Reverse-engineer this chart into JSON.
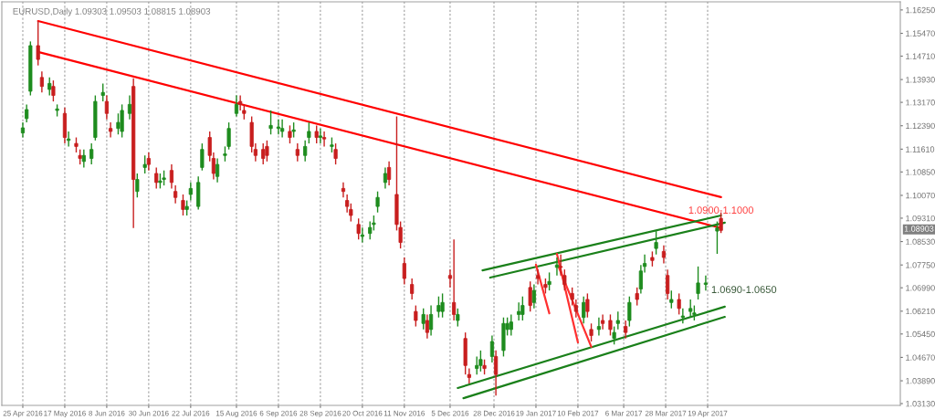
{
  "chart_data": {
    "type": "candlestick",
    "title": "EURUSD,Daily 1.09303 1.09503 1.08815 1.08903",
    "x": [
      "2016-04-25",
      "2016-04-27",
      "2016-04-29",
      "2016-05-03",
      "2016-05-05",
      "2016-05-09",
      "2016-05-11",
      "2016-05-13",
      "2016-05-17",
      "2016-05-19",
      "2016-05-23",
      "2016-05-25",
      "2016-05-27",
      "2016-05-31",
      "2016-06-02",
      "2016-06-06",
      "2016-06-08",
      "2016-06-10",
      "2016-06-14",
      "2016-06-16",
      "2016-06-20",
      "2016-06-22",
      "2016-06-24",
      "2016-06-28",
      "2016-06-30",
      "2016-07-04",
      "2016-07-06",
      "2016-07-08",
      "2016-07-12",
      "2016-07-14",
      "2016-07-18",
      "2016-07-20",
      "2016-07-22",
      "2016-07-26",
      "2016-07-28",
      "2016-08-01",
      "2016-08-03",
      "2016-08-05",
      "2016-08-09",
      "2016-08-11",
      "2016-08-15",
      "2016-08-17",
      "2016-08-19",
      "2016-08-23",
      "2016-08-25",
      "2016-08-29",
      "2016-08-31",
      "2016-09-02",
      "2016-09-06",
      "2016-09-08",
      "2016-09-12",
      "2016-09-14",
      "2016-09-16",
      "2016-09-20",
      "2016-09-22",
      "2016-09-26",
      "2016-09-28",
      "2016-09-30",
      "2016-10-04",
      "2016-10-06",
      "2016-10-10",
      "2016-10-12",
      "2016-10-14",
      "2016-10-18",
      "2016-10-20",
      "2016-10-24",
      "2016-10-26",
      "2016-10-28",
      "2016-11-01",
      "2016-11-03",
      "2016-11-07",
      "2016-11-09",
      "2016-11-11",
      "2016-11-15",
      "2016-11-17",
      "2016-11-21",
      "2016-11-23",
      "2016-11-25",
      "2016-11-29",
      "2016-12-01",
      "2016-12-05",
      "2016-12-07",
      "2016-12-09",
      "2016-12-13",
      "2016-12-15",
      "2016-12-19",
      "2016-12-21",
      "2016-12-23",
      "2016-12-27",
      "2016-12-29",
      "2017-01-02",
      "2017-01-04",
      "2017-01-06",
      "2017-01-10",
      "2017-01-12",
      "2017-01-16",
      "2017-01-18",
      "2017-01-20",
      "2017-01-24",
      "2017-01-26",
      "2017-01-30",
      "2017-02-01",
      "2017-02-03",
      "2017-02-07",
      "2017-02-09",
      "2017-02-13",
      "2017-02-15",
      "2017-02-17",
      "2017-02-21",
      "2017-02-23",
      "2017-02-27",
      "2017-03-01",
      "2017-03-03",
      "2017-03-07",
      "2017-03-09",
      "2017-03-13",
      "2017-03-15",
      "2017-03-17",
      "2017-03-21",
      "2017-03-23",
      "2017-03-27",
      "2017-03-29",
      "2017-03-31",
      "2017-04-04",
      "2017-04-06",
      "2017-04-10",
      "2017-04-12",
      "2017-04-14",
      "2017-04-18",
      "2017-04-24",
      "2017-04-26"
    ],
    "ohlc": [
      [
        1.1215,
        1.125,
        1.12,
        1.1232
      ],
      [
        1.1263,
        1.131,
        1.125,
        1.1293
      ],
      [
        1.1354,
        1.152,
        1.134,
        1.1506
      ],
      [
        1.1506,
        1.1588,
        1.144,
        1.146
      ],
      [
        1.14,
        1.142,
        1.135,
        1.137
      ],
      [
        1.136,
        1.14,
        1.134,
        1.138
      ],
      [
        1.137,
        1.139,
        1.132,
        1.134
      ],
      [
        1.129,
        1.131,
        1.127,
        1.1295
      ],
      [
        1.128,
        1.13,
        1.118,
        1.12
      ],
      [
        1.119,
        1.122,
        1.117,
        1.1195
      ],
      [
        1.118,
        1.12,
        1.115,
        1.117
      ],
      [
        1.114,
        1.116,
        1.111,
        1.113
      ],
      [
        1.112,
        1.116,
        1.11,
        1.114
      ],
      [
        1.113,
        1.118,
        1.111,
        1.116
      ],
      [
        1.12,
        1.134,
        1.119,
        1.132
      ],
      [
        1.134,
        1.138,
        1.132,
        1.135
      ],
      [
        1.132,
        1.134,
        1.126,
        1.128
      ],
      [
        1.123,
        1.125,
        1.12,
        1.122
      ],
      [
        1.123,
        1.128,
        1.121,
        1.125
      ],
      [
        1.122,
        1.131,
        1.12,
        1.129
      ],
      [
        1.128,
        1.134,
        1.126,
        1.131
      ],
      [
        1.137,
        1.1397,
        1.0898,
        1.106
      ],
      [
        1.102,
        1.108,
        1.1,
        1.106
      ],
      [
        1.11,
        1.114,
        1.108,
        1.111
      ],
      [
        1.113,
        1.115,
        1.109,
        1.111
      ],
      [
        1.108,
        1.11,
        1.103,
        1.105
      ],
      [
        1.105,
        1.108,
        1.103,
        1.1055
      ],
      [
        1.106,
        1.109,
        1.104,
        1.1065
      ],
      [
        1.109,
        1.111,
        1.103,
        1.105
      ],
      [
        1.102,
        1.104,
        1.098,
        1.1
      ],
      [
        1.099,
        1.101,
        1.094,
        1.096
      ],
      [
        1.096,
        1.099,
        1.094,
        1.097
      ],
      [
        1.101,
        1.105,
        1.099,
        1.103
      ],
      [
        1.097,
        1.107,
        1.096,
        1.105
      ],
      [
        1.11,
        1.118,
        1.109,
        1.116
      ],
      [
        1.12,
        1.122,
        1.112,
        1.114
      ],
      [
        1.113,
        1.115,
        1.106,
        1.108
      ],
      [
        1.107,
        1.113,
        1.105,
        1.111
      ],
      [
        1.114,
        1.117,
        1.112,
        1.1145
      ],
      [
        1.117,
        1.125,
        1.116,
        1.123
      ],
      [
        1.128,
        1.134,
        1.127,
        1.131
      ],
      [
        1.132,
        1.134,
        1.129,
        1.131
      ],
      [
        1.129,
        1.131,
        1.126,
        1.128
      ],
      [
        1.125,
        1.127,
        1.115,
        1.117
      ],
      [
        1.116,
        1.118,
        1.112,
        1.114
      ],
      [
        1.116,
        1.118,
        1.111,
        1.113
      ],
      [
        1.117,
        1.119,
        1.112,
        1.114
      ],
      [
        1.123,
        1.129,
        1.121,
        1.124
      ],
      [
        1.123,
        1.126,
        1.121,
        1.1235
      ],
      [
        1.122,
        1.126,
        1.12,
        1.123
      ],
      [
        1.122,
        1.124,
        1.118,
        1.12
      ],
      [
        1.122,
        1.125,
        1.12,
        1.1225
      ],
      [
        1.116,
        1.118,
        1.112,
        1.114
      ],
      [
        1.114,
        1.119,
        1.112,
        1.117
      ],
      [
        1.12,
        1.125,
        1.118,
        1.122
      ],
      [
        1.122,
        1.124,
        1.118,
        1.12
      ],
      [
        1.12,
        1.123,
        1.118,
        1.1205
      ],
      [
        1.12,
        1.122,
        1.117,
        1.1195
      ],
      [
        1.117,
        1.12,
        1.115,
        1.1175
      ],
      [
        1.116,
        1.118,
        1.111,
        1.113
      ],
      [
        1.103,
        1.105,
        1.1,
        1.102
      ],
      [
        1.099,
        1.101,
        1.095,
        1.097
      ],
      [
        1.096,
        1.098,
        1.092,
        1.094
      ],
      [
        1.091,
        1.093,
        1.086,
        1.088
      ],
      [
        1.087,
        1.09,
        1.085,
        1.0875
      ],
      [
        1.088,
        1.092,
        1.086,
        1.09
      ],
      [
        1.091,
        1.094,
        1.089,
        1.0915
      ],
      [
        1.097,
        1.102,
        1.095,
        1.1
      ],
      [
        1.105,
        1.11,
        1.103,
        1.108
      ],
      [
        1.11,
        1.112,
        1.104,
        1.106
      ],
      [
        1.101,
        1.127,
        1.089,
        1.091
      ],
      [
        1.09,
        1.092,
        1.083,
        1.085
      ],
      [
        1.078,
        1.08,
        1.071,
        1.073
      ],
      [
        1.071,
        1.073,
        1.066,
        1.068
      ],
      [
        1.062,
        1.064,
        1.057,
        1.059
      ],
      [
        1.058,
        1.063,
        1.056,
        1.061
      ],
      [
        1.059,
        1.061,
        1.053,
        1.055
      ],
      [
        1.056,
        1.064,
        1.054,
        1.061
      ],
      [
        1.062,
        1.067,
        1.06,
        1.064
      ],
      [
        1.062,
        1.068,
        1.06,
        1.065
      ],
      [
        1.074,
        1.076,
        1.07,
        1.073
      ],
      [
        1.065,
        1.086,
        1.059,
        1.061
      ],
      [
        1.059,
        1.063,
        1.057,
        1.061
      ],
      [
        1.053,
        1.055,
        1.041,
        1.044
      ],
      [
        1.041,
        1.043,
        1.038,
        1.04
      ],
      [
        1.043,
        1.047,
        1.041,
        1.044
      ],
      [
        1.044,
        1.049,
        1.042,
        1.046
      ],
      [
        1.044,
        1.046,
        1.041,
        1.043
      ],
      [
        1.047,
        1.054,
        1.045,
        1.052
      ],
      [
        1.047,
        1.049,
        1.034,
        1.041
      ],
      [
        1.049,
        1.06,
        1.047,
        1.058
      ],
      [
        1.056,
        1.06,
        1.054,
        1.058
      ],
      [
        1.056,
        1.061,
        1.054,
        1.0585
      ],
      [
        1.061,
        1.065,
        1.059,
        1.062
      ],
      [
        1.061,
        1.067,
        1.059,
        1.064
      ],
      [
        1.07,
        1.072,
        1.062,
        1.064
      ],
      [
        1.065,
        1.071,
        1.063,
        1.069
      ],
      [
        1.074,
        1.076,
        1.071,
        1.073
      ],
      [
        1.071,
        1.073,
        1.068,
        1.07
      ],
      [
        1.071,
        1.075,
        1.069,
        1.072
      ],
      [
        1.0767,
        1.08,
        1.074,
        1.0775
      ],
      [
        1.077,
        1.081,
        1.074,
        1.0767
      ],
      [
        1.074,
        1.076,
        1.069,
        1.071
      ],
      [
        1.068,
        1.07,
        1.064,
        1.066
      ],
      [
        1.064,
        1.066,
        1.06,
        1.062
      ],
      [
        1.06,
        1.067,
        1.058,
        1.065
      ],
      [
        1.066,
        1.068,
        1.06,
        1.062
      ],
      [
        1.056,
        1.058,
        1.052,
        1.054
      ],
      [
        1.056,
        1.06,
        1.054,
        1.057
      ],
      [
        1.059,
        1.061,
        1.056,
        1.058
      ],
      [
        1.059,
        1.061,
        1.054,
        1.056
      ],
      [
        1.053,
        1.057,
        1.051,
        1.055
      ],
      [
        1.058,
        1.062,
        1.056,
        1.059
      ],
      [
        1.057,
        1.059,
        1.053,
        1.055
      ],
      [
        1.059,
        1.067,
        1.057,
        1.065
      ],
      [
        1.068,
        1.07,
        1.064,
        1.066
      ],
      [
        1.0695,
        1.0775,
        1.068,
        1.0755
      ],
      [
        1.077,
        1.081,
        1.075,
        1.078
      ],
      [
        1.08,
        1.082,
        1.077,
        1.079
      ],
      [
        1.083,
        1.0888,
        1.081,
        1.085
      ],
      [
        1.082,
        1.084,
        1.078,
        1.08
      ],
      [
        1.074,
        1.076,
        1.066,
        1.068
      ],
      [
        1.065,
        1.069,
        1.063,
        1.066
      ],
      [
        1.066,
        1.068,
        1.061,
        1.063
      ],
      [
        1.06,
        1.063,
        1.058,
        1.0605
      ],
      [
        1.062,
        1.066,
        1.06,
        1.063
      ],
      [
        1.061,
        1.064,
        1.059,
        1.0615
      ],
      [
        1.068,
        1.077,
        1.066,
        1.0715
      ],
      [
        1.071,
        1.074,
        1.069,
        1.0715
      ],
      [
        1.0888,
        1.092,
        1.0812,
        1.0898
      ],
      [
        1.09303,
        1.09503,
        1.08815,
        1.08903
      ]
    ],
    "colors": [
      "#1e8c1e",
      "#1e8c1e",
      "#1e8c1e",
      "#c81e1e",
      "#c81e1e",
      "#1e8c1e",
      "#c81e1e",
      "#1e8c1e",
      "#c81e1e",
      "#1e8c1e",
      "#c81e1e",
      "#c81e1e",
      "#1e8c1e",
      "#1e8c1e",
      "#1e8c1e",
      "#1e8c1e",
      "#c81e1e",
      "#c81e1e",
      "#1e8c1e",
      "#1e8c1e",
      "#1e8c1e",
      "#c81e1e",
      "#1e8c1e",
      "#1e8c1e",
      "#c81e1e",
      "#c81e1e",
      "#1e8c1e",
      "#1e8c1e",
      "#c81e1e",
      "#c81e1e",
      "#c81e1e",
      "#1e8c1e",
      "#1e8c1e",
      "#1e8c1e",
      "#1e8c1e",
      "#c81e1e",
      "#c81e1e",
      "#1e8c1e",
      "#1e8c1e",
      "#1e8c1e",
      "#1e8c1e",
      "#c81e1e",
      "#c81e1e",
      "#c81e1e",
      "#c81e1e",
      "#c81e1e",
      "#c81e1e",
      "#1e8c1e",
      "#1e8c1e",
      "#1e8c1e",
      "#c81e1e",
      "#1e8c1e",
      "#c81e1e",
      "#1e8c1e",
      "#1e8c1e",
      "#c81e1e",
      "#1e8c1e",
      "#c81e1e",
      "#1e8c1e",
      "#c81e1e",
      "#c81e1e",
      "#c81e1e",
      "#c81e1e",
      "#c81e1e",
      "#1e8c1e",
      "#1e8c1e",
      "#1e8c1e",
      "#1e8c1e",
      "#1e8c1e",
      "#c81e1e",
      "#c81e1e",
      "#c81e1e",
      "#c81e1e",
      "#c81e1e",
      "#c81e1e",
      "#1e8c1e",
      "#c81e1e",
      "#1e8c1e",
      "#1e8c1e",
      "#1e8c1e",
      "#c81e1e",
      "#c81e1e",
      "#1e8c1e",
      "#c81e1e",
      "#c81e1e",
      "#1e8c1e",
      "#1e8c1e",
      "#c81e1e",
      "#1e8c1e",
      "#c81e1e",
      "#1e8c1e",
      "#1e8c1e",
      "#1e8c1e",
      "#1e8c1e",
      "#1e8c1e",
      "#c81e1e",
      "#1e8c1e",
      "#c81e1e",
      "#c81e1e",
      "#1e8c1e",
      "#1e8c1e",
      "#c81e1e",
      "#c81e1e",
      "#c81e1e",
      "#c81e1e",
      "#1e8c1e",
      "#c81e1e",
      "#c81e1e",
      "#1e8c1e",
      "#c81e1e",
      "#c81e1e",
      "#1e8c1e",
      "#1e8c1e",
      "#c81e1e",
      "#1e8c1e",
      "#c81e1e",
      "#1e8c1e",
      "#1e8c1e",
      "#c81e1e",
      "#1e8c1e",
      "#c81e1e",
      "#c81e1e",
      "#1e8c1e",
      "#c81e1e",
      "#1e8c1e",
      "#1e8c1e",
      "#1e8c1e",
      "#1e8c1e",
      "#1e8c1e",
      "#1e8c1e",
      "#c81e1e"
    ],
    "series": [
      {
        "type": "line",
        "color": "#ff0000",
        "x": [
          "2016-05-03",
          "2017-04-26"
        ],
        "values": [
          1.1588,
          1.1001
        ]
      },
      {
        "type": "line",
        "color": "#ff0000",
        "x": [
          "2016-05-03",
          "2017-04-26"
        ],
        "values": [
          1.1485,
          1.0898
        ]
      },
      {
        "type": "line",
        "color": "#1a801a",
        "x": [
          "2016-12-22",
          "2017-04-26"
        ],
        "values": [
          1.0757,
          1.094
        ]
      },
      {
        "type": "line",
        "color": "#1a801a",
        "x": [
          "2016-12-26",
          "2017-04-28"
        ],
        "values": [
          1.0733,
          1.0916
        ]
      },
      {
        "type": "line",
        "color": "#1a801a",
        "x": [
          "2016-12-09",
          "2017-04-28"
        ],
        "values": [
          1.0365,
          1.0636
        ]
      },
      {
        "type": "line",
        "color": "#1a801a",
        "x": [
          "2016-12-12",
          "2017-04-28"
        ],
        "values": [
          1.0331,
          1.0602
        ]
      },
      {
        "type": "line",
        "color": "#ff3030",
        "x": [
          "2017-01-19",
          "2017-01-26"
        ],
        "values": [
          1.0776,
          1.0614
        ]
      },
      {
        "type": "line",
        "color": "#ff3030",
        "x": [
          "2017-01-30",
          "2017-02-10"
        ],
        "values": [
          1.0812,
          1.0517
        ]
      },
      {
        "type": "line",
        "color": "#ff3030",
        "x": [
          "2017-01-31",
          "2017-02-17"
        ],
        "values": [
          1.0767,
          1.0502
        ]
      }
    ],
    "annotations": [
      {
        "text": "1.0900-1.1000",
        "x": "2017-04-26",
        "y": 1.0955
      },
      "1.0690-1.0650",
      "1.08903"
    ],
    "xlim": [
      "2016-04-14",
      "2017-07-29"
    ],
    "ylim": [
      1.0307,
      1.1652
    ],
    "xticks": [
      {
        "value": "2016-04-25",
        "label": "25 Apr 2016"
      },
      {
        "value": "2016-05-17",
        "label": "17 May 2016"
      },
      {
        "value": "2016-06-08",
        "label": "8 Jun 2016"
      },
      {
        "value": "2016-06-30",
        "label": "30 Jun 2016"
      },
      {
        "value": "2016-07-22",
        "label": "22 Jul 2016"
      },
      {
        "value": "2016-08-15",
        "label": "15 Aug 2016"
      },
      {
        "value": "2016-09-06",
        "label": "6 Sep 2016"
      },
      {
        "value": "2016-09-28",
        "label": "28 Sep 2016"
      },
      {
        "value": "2016-10-20",
        "label": "20 Oct 2016"
      },
      {
        "value": "2016-11-11",
        "label": "11 Nov 2016"
      },
      {
        "value": "2016-12-05",
        "label": "5 Dec 2016"
      },
      {
        "value": "2016-12-28",
        "label": "28 Dec 2016"
      },
      {
        "value": "2017-01-19",
        "label": "19 Jan 2017"
      },
      {
        "value": "2017-02-10",
        "label": "10 Feb 2017"
      },
      {
        "value": "2017-03-06",
        "label": "6 Mar 2017"
      },
      {
        "value": "2017-03-28",
        "label": "28 Mar 2017"
      },
      {
        "value": "2017-04-19",
        "label": "19 Apr 2017"
      }
    ],
    "yticks": [
      {
        "value": 1.1625,
        "label": "1.16250"
      },
      {
        "value": 1.1547,
        "label": "1.15470"
      },
      {
        "value": 1.1471,
        "label": "1.14710"
      },
      {
        "value": 1.1393,
        "label": "1.13930"
      },
      {
        "value": 1.1317,
        "label": "1.13170"
      },
      {
        "value": 1.1239,
        "label": "1.12390"
      },
      {
        "value": 1.1161,
        "label": "1.11610"
      },
      {
        "value": 1.1085,
        "label": "1.10850"
      },
      {
        "value": 1.1007,
        "label": "1.10070"
      },
      {
        "value": 1.0931,
        "label": "1.09310"
      },
      {
        "value": 1.0853,
        "label": "1.08530"
      },
      {
        "value": 1.0775,
        "label": "1.07750"
      },
      {
        "value": 1.0699,
        "label": "1.06990"
      },
      {
        "value": 1.0621,
        "label": "1.06210"
      },
      {
        "value": 1.0545,
        "label": "1.05450"
      },
      {
        "value": 1.0467,
        "label": "1.04670"
      },
      {
        "value": 1.0389,
        "label": "1.03890"
      },
      {
        "value": 1.0313,
        "label": "1.03130"
      }
    ],
    "grid": "x"
  }
}
